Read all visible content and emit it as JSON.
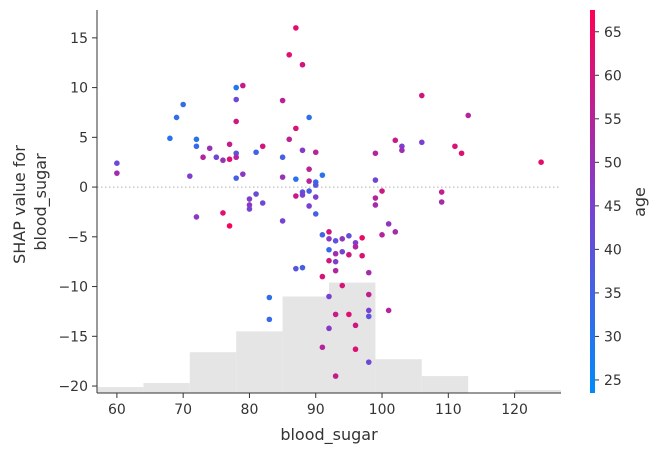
{
  "chart_data": {
    "type": "scatter",
    "xlabel": "blood_sugar",
    "ylabel_lines": [
      "SHAP value for",
      "blood_sugar"
    ],
    "xlim": [
      57,
      127
    ],
    "ylim": [
      -20.7,
      17.8
    ],
    "xticks": [
      60,
      70,
      80,
      90,
      100,
      110,
      120
    ],
    "yticks": [
      -20,
      -15,
      -10,
      -5,
      0,
      5,
      10,
      15
    ],
    "colorbar": {
      "label": "age",
      "min": 23.5,
      "max": 67.5,
      "ticks": [
        25,
        30,
        35,
        40,
        45,
        50,
        55,
        60,
        65
      ],
      "low_color": "#008bfb",
      "mid_color": "#7c3fd0",
      "high_color": "#ff0052"
    },
    "zero_line": true,
    "histogram": {
      "color": "#e5e5e5",
      "bins": [
        {
          "x0": 57,
          "x1": 64,
          "y": -20.1
        },
        {
          "x0": 64,
          "x1": 71,
          "y": -19.7
        },
        {
          "x0": 71,
          "x1": 78,
          "y": -16.6
        },
        {
          "x0": 78,
          "x1": 85,
          "y": -14.5
        },
        {
          "x0": 85,
          "x1": 92,
          "y": -11.0
        },
        {
          "x0": 92,
          "x1": 99,
          "y": -9.6
        },
        {
          "x0": 99,
          "x1": 106,
          "y": -17.3
        },
        {
          "x0": 106,
          "x1": 113,
          "y": -19.0
        },
        {
          "x0": 113,
          "x1": 120,
          "y": -20.7
        },
        {
          "x0": 120,
          "x1": 127,
          "y": -20.4
        }
      ]
    },
    "points": [
      {
        "x": 60,
        "y": 2.4,
        "age": 42
      },
      {
        "x": 60,
        "y": 1.4,
        "age": 52
      },
      {
        "x": 68,
        "y": 4.9,
        "age": 31
      },
      {
        "x": 69,
        "y": 7.0,
        "age": 32
      },
      {
        "x": 70,
        "y": 8.3,
        "age": 33
      },
      {
        "x": 71,
        "y": 1.1,
        "age": 46
      },
      {
        "x": 72,
        "y": 4.8,
        "age": 31
      },
      {
        "x": 72,
        "y": 4.1,
        "age": 33
      },
      {
        "x": 72,
        "y": -3.0,
        "age": 48
      },
      {
        "x": 73,
        "y": 3.0,
        "age": 54
      },
      {
        "x": 74,
        "y": 3.9,
        "age": 50
      },
      {
        "x": 75,
        "y": 3.0,
        "age": 44
      },
      {
        "x": 76,
        "y": 2.7,
        "age": 50
      },
      {
        "x": 76,
        "y": -2.6,
        "age": 62
      },
      {
        "x": 77,
        "y": 4.3,
        "age": 57
      },
      {
        "x": 77,
        "y": 2.8,
        "age": 62
      },
      {
        "x": 77,
        "y": -3.9,
        "age": 66
      },
      {
        "x": 78,
        "y": 10.0,
        "age": 29
      },
      {
        "x": 78,
        "y": 8.8,
        "age": 43
      },
      {
        "x": 78,
        "y": 6.6,
        "age": 59
      },
      {
        "x": 78,
        "y": 3.4,
        "age": 39
      },
      {
        "x": 78,
        "y": 3.0,
        "age": 55
      },
      {
        "x": 78,
        "y": 0.9,
        "age": 36
      },
      {
        "x": 79,
        "y": 10.2,
        "age": 58
      },
      {
        "x": 79,
        "y": 1.3,
        "age": 48
      },
      {
        "x": 80,
        "y": -1.2,
        "age": 46
      },
      {
        "x": 80,
        "y": -1.8,
        "age": 48
      },
      {
        "x": 80,
        "y": -2.2,
        "age": 44
      },
      {
        "x": 81,
        "y": 3.5,
        "age": 35
      },
      {
        "x": 81,
        "y": -0.7,
        "age": 42
      },
      {
        "x": 82,
        "y": 4.1,
        "age": 60
      },
      {
        "x": 82,
        "y": -1.6,
        "age": 43
      },
      {
        "x": 83,
        "y": -11.1,
        "age": 32
      },
      {
        "x": 83,
        "y": -13.3,
        "age": 33
      },
      {
        "x": 85,
        "y": 8.7,
        "age": 56
      },
      {
        "x": 85,
        "y": 3.0,
        "age": 36
      },
      {
        "x": 85,
        "y": 1.0,
        "age": 50
      },
      {
        "x": 85,
        "y": -3.4,
        "age": 44
      },
      {
        "x": 86,
        "y": 13.3,
        "age": 62
      },
      {
        "x": 86,
        "y": 4.8,
        "age": 56
      },
      {
        "x": 87,
        "y": 16.0,
        "age": 63
      },
      {
        "x": 87,
        "y": 5.9,
        "age": 61
      },
      {
        "x": 87,
        "y": 0.8,
        "age": 31
      },
      {
        "x": 87,
        "y": -0.9,
        "age": 58
      },
      {
        "x": 87,
        "y": -8.2,
        "age": 39
      },
      {
        "x": 88,
        "y": 12.3,
        "age": 60
      },
      {
        "x": 88,
        "y": 3.7,
        "age": 47
      },
      {
        "x": 88,
        "y": -0.5,
        "age": 40
      },
      {
        "x": 88,
        "y": -0.8,
        "age": 44
      },
      {
        "x": 88,
        "y": -8.1,
        "age": 36
      },
      {
        "x": 89,
        "y": 7.0,
        "age": 32
      },
      {
        "x": 89,
        "y": 1.8,
        "age": 56
      },
      {
        "x": 89,
        "y": 0.6,
        "age": 55
      },
      {
        "x": 89,
        "y": -0.4,
        "age": 37
      },
      {
        "x": 89,
        "y": -1.9,
        "age": 45
      },
      {
        "x": 90,
        "y": 3.5,
        "age": 55
      },
      {
        "x": 90,
        "y": 0.5,
        "age": 33
      },
      {
        "x": 90,
        "y": 0.2,
        "age": 39
      },
      {
        "x": 90,
        "y": -1.0,
        "age": 46
      },
      {
        "x": 90,
        "y": -2.7,
        "age": 36
      },
      {
        "x": 91,
        "y": 1.2,
        "age": 31
      },
      {
        "x": 91,
        "y": -4.8,
        "age": 35
      },
      {
        "x": 91,
        "y": -9.0,
        "age": 61
      },
      {
        "x": 91,
        "y": -16.1,
        "age": 55
      },
      {
        "x": 92,
        "y": -4.5,
        "age": 60
      },
      {
        "x": 92,
        "y": -5.2,
        "age": 48
      },
      {
        "x": 92,
        "y": -6.3,
        "age": 33
      },
      {
        "x": 92,
        "y": -7.4,
        "age": 59
      },
      {
        "x": 92,
        "y": -11.0,
        "age": 45
      },
      {
        "x": 92,
        "y": -14.2,
        "age": 47
      },
      {
        "x": 93,
        "y": -5.4,
        "age": 40
      },
      {
        "x": 93,
        "y": -6.7,
        "age": 52
      },
      {
        "x": 93,
        "y": -7.5,
        "age": 47
      },
      {
        "x": 93,
        "y": -8.4,
        "age": 54
      },
      {
        "x": 93,
        "y": -12.8,
        "age": 58
      },
      {
        "x": 93,
        "y": -19.0,
        "age": 57
      },
      {
        "x": 94,
        "y": -5.2,
        "age": 49
      },
      {
        "x": 94,
        "y": -6.5,
        "age": 44
      },
      {
        "x": 94,
        "y": -9.9,
        "age": 61
      },
      {
        "x": 95,
        "y": -4.9,
        "age": 41
      },
      {
        "x": 95,
        "y": -6.8,
        "age": 59
      },
      {
        "x": 95,
        "y": -12.8,
        "age": 62
      },
      {
        "x": 96,
        "y": -5.6,
        "age": 47
      },
      {
        "x": 96,
        "y": -6.0,
        "age": 54
      },
      {
        "x": 96,
        "y": -13.9,
        "age": 59
      },
      {
        "x": 96,
        "y": -16.3,
        "age": 62
      },
      {
        "x": 97,
        "y": -5.1,
        "age": 64
      },
      {
        "x": 97,
        "y": -6.9,
        "age": 62
      },
      {
        "x": 98,
        "y": -8.6,
        "age": 52
      },
      {
        "x": 98,
        "y": -10.8,
        "age": 57
      },
      {
        "x": 98,
        "y": -12.4,
        "age": 45
      },
      {
        "x": 98,
        "y": -13.0,
        "age": 40
      },
      {
        "x": 98,
        "y": -17.6,
        "age": 43
      },
      {
        "x": 99,
        "y": 3.4,
        "age": 55
      },
      {
        "x": 99,
        "y": 0.7,
        "age": 43
      },
      {
        "x": 99,
        "y": -1.1,
        "age": 55
      },
      {
        "x": 99,
        "y": -1.8,
        "age": 52
      },
      {
        "x": 100,
        "y": -0.4,
        "age": 59
      },
      {
        "x": 100,
        "y": -4.8,
        "age": 55
      },
      {
        "x": 101,
        "y": -3.7,
        "age": 49
      },
      {
        "x": 101,
        "y": -12.4,
        "age": 55
      },
      {
        "x": 102,
        "y": 4.7,
        "age": 58
      },
      {
        "x": 102,
        "y": -4.5,
        "age": 52
      },
      {
        "x": 103,
        "y": 4.1,
        "age": 46
      },
      {
        "x": 103,
        "y": 3.7,
        "age": 51
      },
      {
        "x": 106,
        "y": 9.2,
        "age": 60
      },
      {
        "x": 106,
        "y": 4.5,
        "age": 45
      },
      {
        "x": 109,
        "y": -0.5,
        "age": 57
      },
      {
        "x": 109,
        "y": -1.5,
        "age": 52
      },
      {
        "x": 111,
        "y": 4.1,
        "age": 61
      },
      {
        "x": 112,
        "y": 3.4,
        "age": 62
      },
      {
        "x": 113,
        "y": 7.2,
        "age": 55
      },
      {
        "x": 124,
        "y": 2.5,
        "age": 63
      }
    ]
  }
}
